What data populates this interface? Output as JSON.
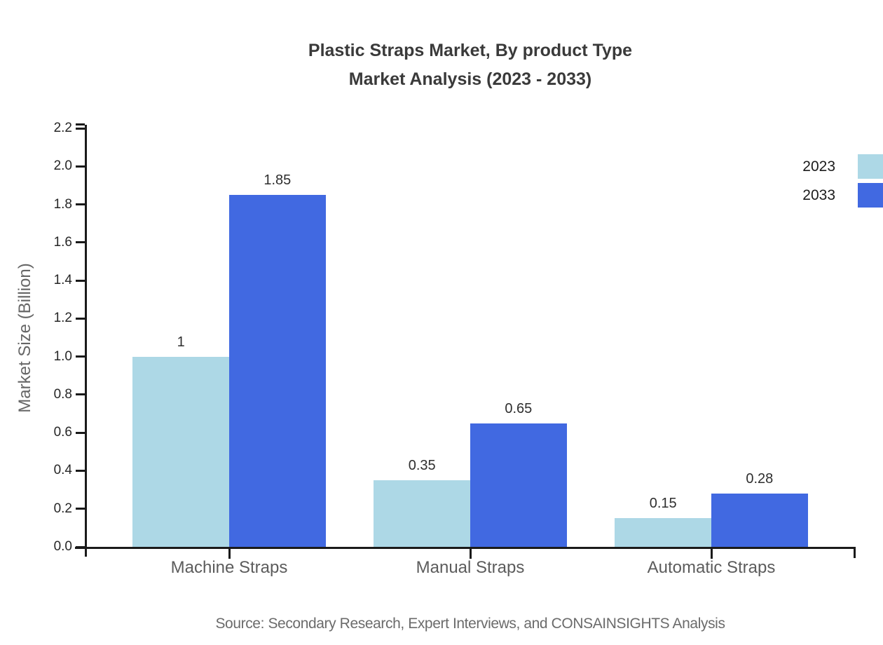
{
  "title_lines": [
    "Plastic Straps Market, By product Type",
    "Market Analysis (2023 - 2033)"
  ],
  "source_note": "Source: Secondary Research, Expert Interviews, and CONSAINSIGHTS Analysis",
  "chart_data": {
    "type": "bar",
    "title": "Plastic Straps Market, By product Type Market Analysis (2023 - 2033)",
    "categories": [
      "Machine Straps",
      "Manual Straps",
      "Automatic Straps"
    ],
    "series": [
      {
        "name": "2023",
        "color": "#add8e6",
        "values": [
          1,
          0.35,
          0.15
        ],
        "labels": [
          "1",
          "0.35",
          "0.15"
        ]
      },
      {
        "name": "2033",
        "color": "#4169e1",
        "values": [
          1.85,
          0.65,
          0.28
        ],
        "labels": [
          "1.85",
          "0.65",
          "0.28"
        ]
      }
    ],
    "xlabel": "",
    "ylabel": "Market Size (Billion)",
    "ylim": [
      0,
      2.2
    ],
    "ytick_step": 0.2,
    "grid": false,
    "legend_position": "top-right",
    "axis_color": "#1a1a1a",
    "tick_label_color": "#262626",
    "category_label_color": "#5c5c5c"
  }
}
